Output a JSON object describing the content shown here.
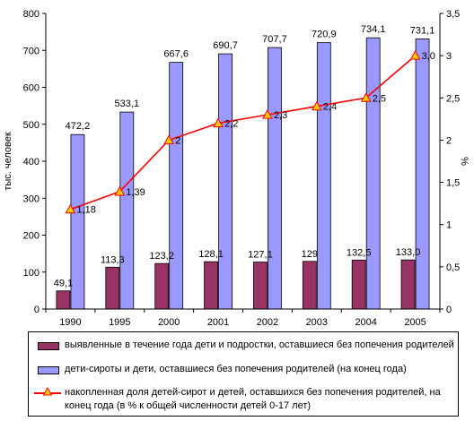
{
  "chart_data": {
    "type": "bar+line",
    "categories": [
      "1990",
      "1995",
      "2000",
      "2001",
      "2002",
      "2003",
      "2004",
      "2005"
    ],
    "series": [
      {
        "name": "выявленные в течение года дети и подростки, оставшиеся без попечения родителей",
        "kind": "bar",
        "axis": "left",
        "color": "#993366",
        "values": [
          49.1,
          113.3,
          123.2,
          128.1,
          127.1,
          129,
          132.5,
          133.0
        ],
        "labels": [
          "49,1",
          "113,3",
          "123,2",
          "128,1",
          "127,1",
          "129",
          "132,5",
          "133,0"
        ]
      },
      {
        "name": "дети-сироты и дети, оставшиеся без попечения родителей (на конец года)",
        "kind": "bar",
        "axis": "left",
        "color": "#9999ff",
        "values": [
          472.2,
          533.1,
          667.6,
          690.7,
          707.7,
          720.9,
          734.1,
          731.1
        ],
        "labels": [
          "472,2",
          "533,1",
          "667,6",
          "690,7",
          "707,7",
          "720,9",
          "734,1",
          "731,1"
        ]
      },
      {
        "name": "накопленная доля детей-сирот и детей, оставшихся без попечения родителей, на конец года (в % к общей численности детей 0-17 лет)",
        "kind": "line",
        "axis": "right",
        "color": "#ff0000",
        "marker_color": "#ffcc00",
        "values": [
          1.18,
          1.39,
          2,
          2.2,
          2.3,
          2.4,
          2.5,
          3.0
        ],
        "labels": [
          "1,18",
          "1,39",
          "2",
          "2,2",
          "2,3",
          "2,4",
          "2,5",
          "3,0"
        ]
      }
    ],
    "ylabel": "тыс. человек",
    "y2label": "%",
    "ylim": [
      0,
      800
    ],
    "y2lim": [
      0,
      3.5
    ],
    "yticks": [
      "0",
      "100",
      "200",
      "300",
      "400",
      "500",
      "600",
      "700",
      "800"
    ],
    "y2ticks": [
      "0",
      "0,5",
      "1",
      "1,5",
      "2",
      "2,5",
      "3",
      "3,5"
    ],
    "grid": false,
    "legend_position": "bottom"
  }
}
